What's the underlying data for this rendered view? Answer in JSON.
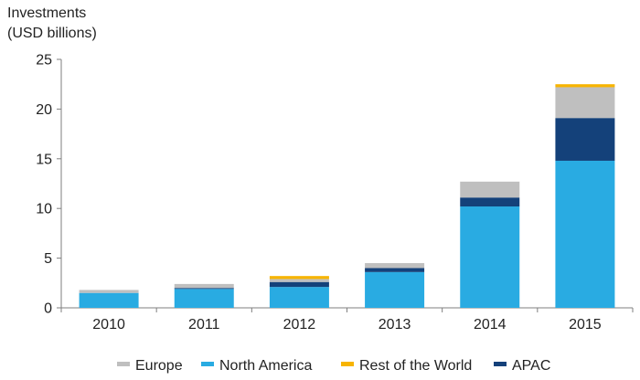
{
  "chart_data": {
    "type": "bar",
    "stacked": true,
    "title": "",
    "ylabel_lines": [
      "Investments",
      "(USD billions)"
    ],
    "xlabel": "",
    "categories": [
      "2010",
      "2011",
      "2012",
      "2013",
      "2014",
      "2015"
    ],
    "ylim": [
      0,
      25
    ],
    "yticks": [
      0,
      5,
      10,
      15,
      20,
      25
    ],
    "grid": false,
    "legend_position": "bottom",
    "series": [
      {
        "name": "North America",
        "color": "#29abe2",
        "values": [
          1.5,
          1.9,
          2.1,
          3.6,
          10.2,
          14.8
        ]
      },
      {
        "name": "APAC",
        "color": "#14417a",
        "values": [
          0.0,
          0.1,
          0.5,
          0.4,
          0.9,
          4.3
        ]
      },
      {
        "name": "Europe",
        "color": "#bfbfbf",
        "values": [
          0.3,
          0.4,
          0.3,
          0.5,
          1.6,
          3.1
        ]
      },
      {
        "name": "Rest of the World",
        "color": "#f7b400",
        "values": [
          0.0,
          0.0,
          0.3,
          0.0,
          0.0,
          0.3
        ]
      }
    ],
    "legend_order": [
      "Europe",
      "North America",
      "Rest of the World",
      "APAC"
    ]
  }
}
